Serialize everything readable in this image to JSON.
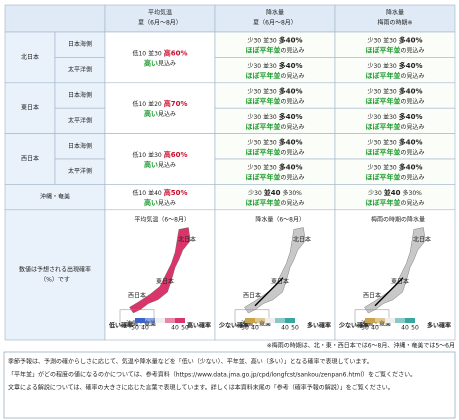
{
  "table": {
    "columns": [
      {
        "top": "平均気温",
        "sub": "夏（6月～8月）"
      },
      {
        "top": "降水量",
        "sub": "夏（6月～8月）"
      },
      {
        "top": "降水量",
        "sub": "梅雨の時期※"
      }
    ],
    "regions": [
      {
        "name": "北日本",
        "subs": [
          "日本海側",
          "太平洋側"
        ],
        "temp": {
          "probs": [
            "低10",
            "並30",
            "高60%"
          ],
          "emph": 2,
          "word": "高い",
          "rest": "見込み"
        },
        "precip": [
          {
            "probs": [
              "少30",
              "並30",
              "多40%"
            ],
            "emph": 2,
            "word": "ほぼ平年並",
            "rest": "の見込み"
          },
          {
            "probs": [
              "少30",
              "並30",
              "多40%"
            ],
            "emph": 2,
            "word": "ほぼ平年並",
            "rest": "の見込み"
          }
        ],
        "rainy": [
          {
            "probs": [
              "少30",
              "並30",
              "多40%"
            ],
            "emph": 2,
            "word": "ほぼ平年並",
            "rest": "の見込み"
          },
          {
            "probs": [
              "少30",
              "並30",
              "多40%"
            ],
            "emph": 2,
            "word": "ほぼ平年並",
            "rest": "の見込み"
          }
        ]
      },
      {
        "name": "東日本",
        "subs": [
          "日本海側",
          "太平洋側"
        ],
        "temp": {
          "probs": [
            "低10",
            "並20",
            "高70%"
          ],
          "emph": 2,
          "word": "高い",
          "rest": "見込み"
        },
        "precip": [
          {
            "probs": [
              "少30",
              "並30",
              "多40%"
            ],
            "emph": 2,
            "word": "ほぼ平年並",
            "rest": "の見込み"
          },
          {
            "probs": [
              "少30",
              "並30",
              "多40%"
            ],
            "emph": 2,
            "word": "ほぼ平年並",
            "rest": "の見込み"
          }
        ],
        "rainy": [
          {
            "probs": [
              "少30",
              "並30",
              "多40%"
            ],
            "emph": 2,
            "word": "ほぼ平年並",
            "rest": "の見込み"
          },
          {
            "probs": [
              "少30",
              "並30",
              "多40%"
            ],
            "emph": 2,
            "word": "ほぼ平年並",
            "rest": "の見込み"
          }
        ]
      },
      {
        "name": "西日本",
        "subs": [
          "日本海側",
          "太平洋側"
        ],
        "temp": {
          "probs": [
            "低10",
            "並30",
            "高60%"
          ],
          "emph": 2,
          "word": "高い",
          "rest": "見込み"
        },
        "precip": [
          {
            "probs": [
              "少30",
              "並30",
              "多40%"
            ],
            "emph": 2,
            "word": "ほぼ平年並",
            "rest": "の見込み"
          },
          {
            "probs": [
              "少30",
              "並30",
              "多40%"
            ],
            "emph": 2,
            "word": "ほぼ平年並",
            "rest": "の見込み"
          }
        ],
        "rainy": [
          {
            "probs": [
              "少30",
              "並30",
              "多40%"
            ],
            "emph": 2,
            "word": "ほぼ平年並",
            "rest": "の見込み"
          },
          {
            "probs": [
              "少30",
              "並30",
              "多40%"
            ],
            "emph": 2,
            "word": "ほぼ平年並",
            "rest": "の見込み"
          }
        ]
      },
      {
        "name": "沖縄・奄美",
        "subs": [],
        "temp": {
          "probs": [
            "低10",
            "並40",
            "高50%"
          ],
          "emph": 2,
          "word": "高い",
          "rest": "見込み"
        },
        "precip": [
          {
            "probs": [
              "少30",
              "並40",
              "多30%"
            ],
            "emph": 1,
            "word": "ほぼ平年並",
            "rest": "の見込み"
          }
        ],
        "rainy": [
          {
            "probs": [
              "少30",
              "並40",
              "多30%"
            ],
            "emph": 1,
            "word": "ほぼ平年並",
            "rest": "の見込み"
          }
        ]
      }
    ]
  },
  "maps": {
    "label": [
      "数値は予想される出現確率",
      "（%）です"
    ],
    "items": [
      {
        "title": "平均気温（6～8月）",
        "fill": "#d9356a",
        "regions": [
          "北日本",
          "東日本",
          "西日本",
          "沖縄・奄美"
        ],
        "legend": {
          "low": "低い確率",
          "high": "高い確率",
          "scale": [
            "50",
            "40",
            "40",
            "50"
          ],
          "low_color": "#3a63c8",
          "high_color": "#d9356a"
        }
      },
      {
        "title": "降水量（6～8月）",
        "fill": "#c8c8c8",
        "regions": [
          "北日本",
          "東日本",
          "西日本",
          "沖縄・奄美"
        ],
        "legend": {
          "low": "少ない確率",
          "high": "多い確率",
          "scale": [
            "50",
            "40",
            "40",
            "50"
          ],
          "low_color": "#c9a24a",
          "high_color": "#3aa6a0"
        }
      },
      {
        "title": "梅雨の時期の降水量",
        "fill": "#c8c8c8",
        "regions": [
          "北日本",
          "東日本",
          "西日本",
          "沖縄・奄美"
        ],
        "legend": {
          "low": "少ない確率",
          "high": "多い確率",
          "scale": [
            "50",
            "40",
            "40",
            "50"
          ],
          "low_color": "#c9a24a",
          "high_color": "#3aa6a0"
        }
      }
    ]
  },
  "footnote": "※梅雨の時期は、北・東・西日本では6～8月、沖縄・奄美では5～6月",
  "notes": [
    "季節予報は、予測の確からしさに応じて、気温や降水量などを「低い（少ない）、平年並、高い（多い）」となる確率で表現しています。",
    "「平年並」がどの程度の値になるのかについては、参考資料（https://www.data.jma.go.jp/cpd/longfcst/sankou/zenpan6.html）をご覧ください。",
    "文章による解説については、確率の大きさに応じた言葉で表現しています。詳しくは本資料末尾の「参考（確率予報の解説）」をご覧ください。"
  ]
}
